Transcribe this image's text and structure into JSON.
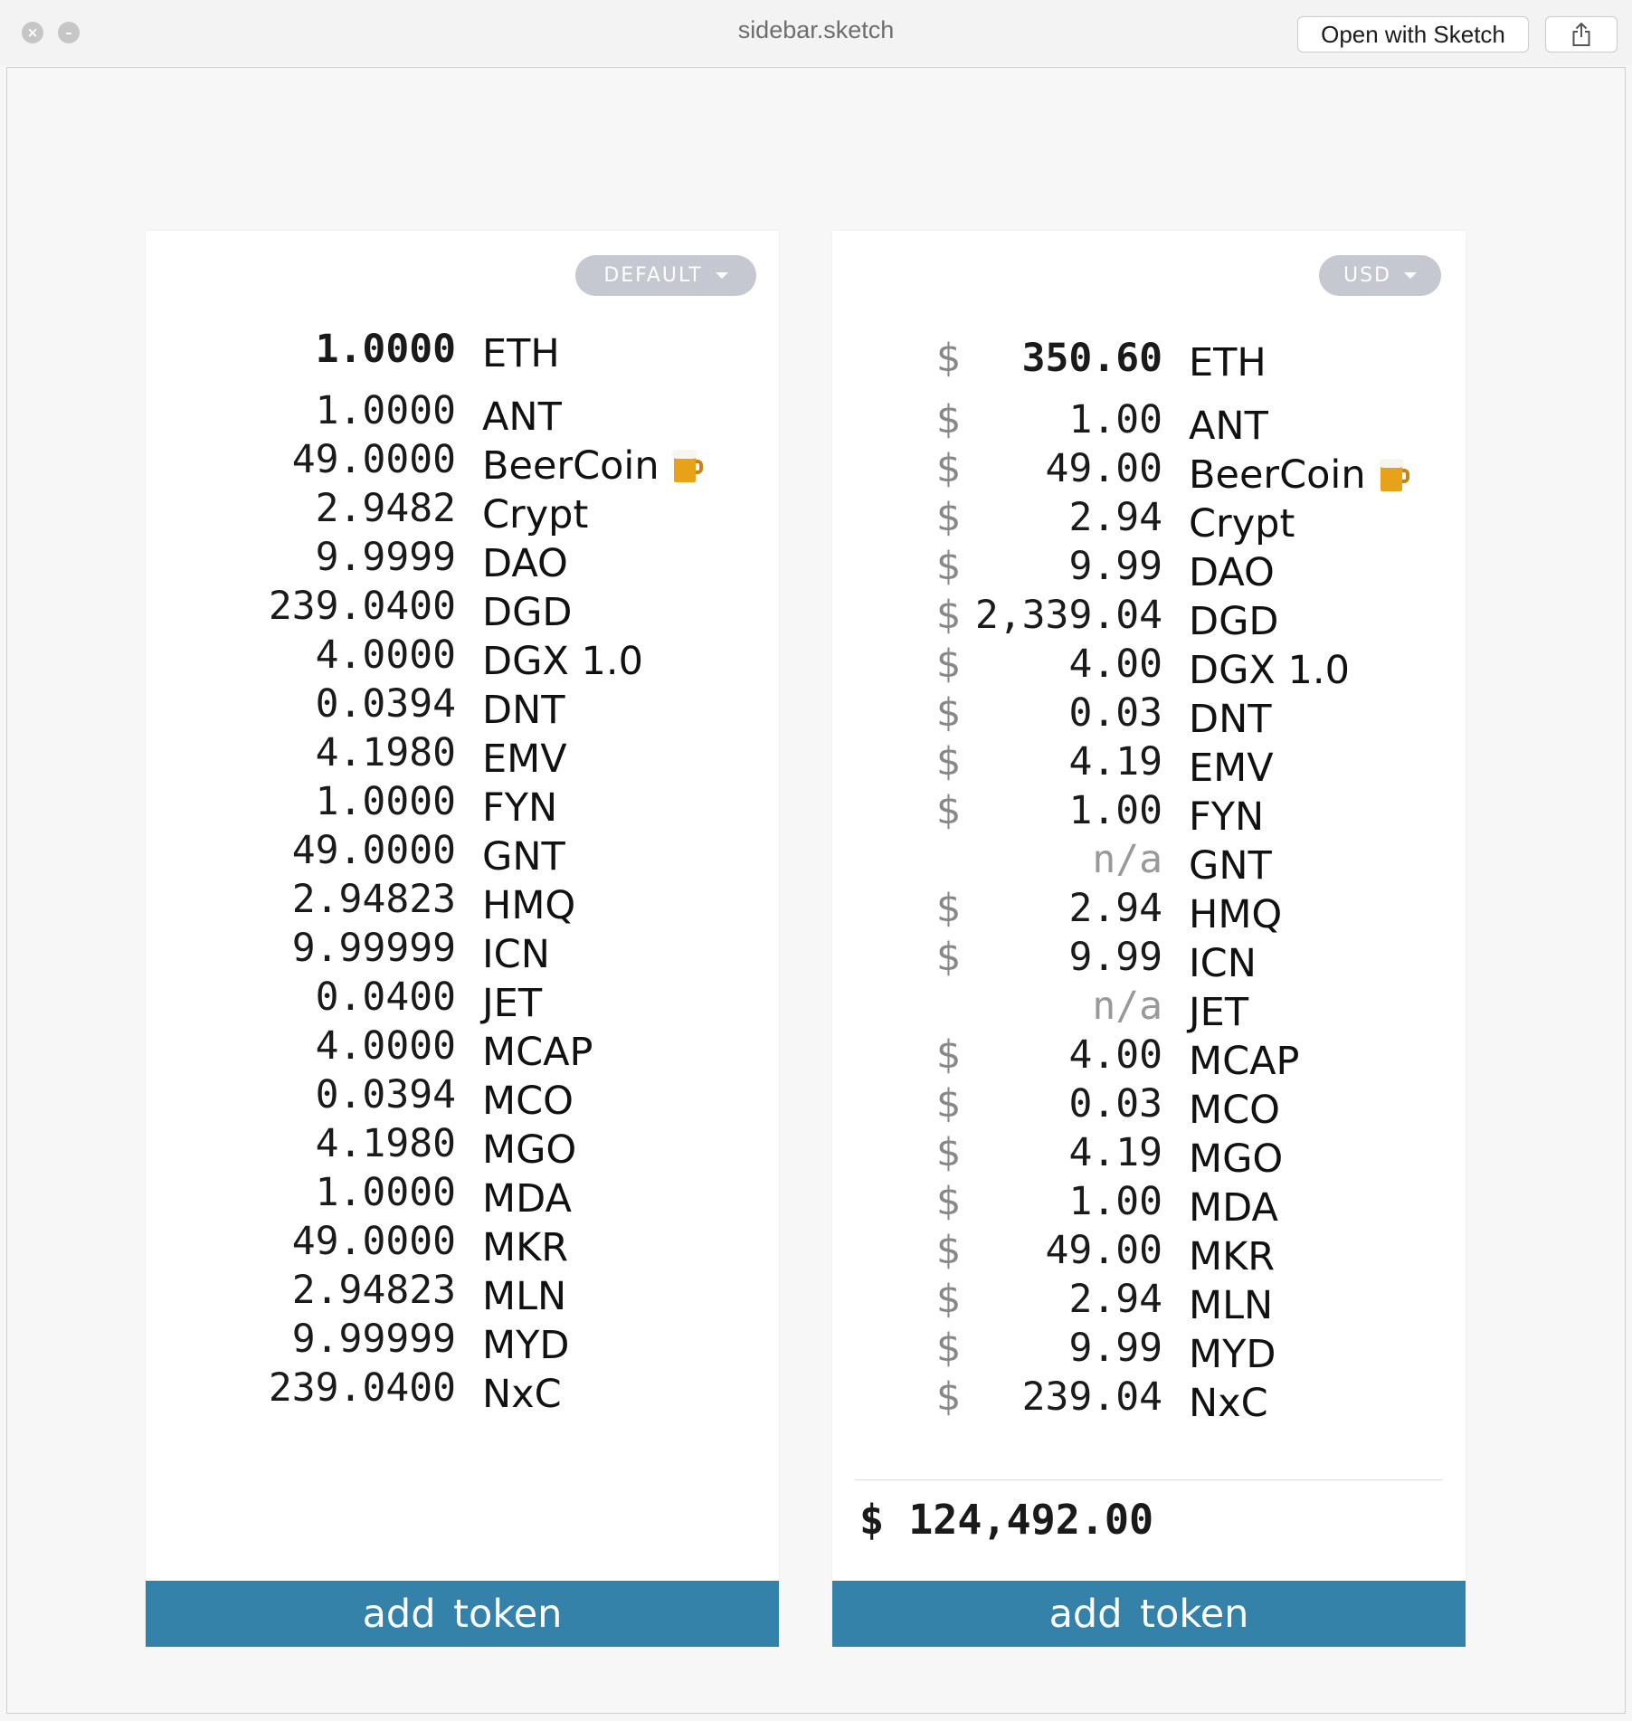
{
  "window": {
    "title": "sidebar.sketch",
    "open_with_label": "Open with Sketch",
    "share_icon": "share-icon",
    "close_icon": "close-icon",
    "minimize_icon": "minimize-icon"
  },
  "left_panel": {
    "selector": {
      "label": "DEFAULT",
      "icon": "chevron-down-icon"
    },
    "header": {
      "amount": "1.0000",
      "symbol": "ETH"
    },
    "tokens": [
      {
        "amount": "1.0000",
        "symbol": "ANT"
      },
      {
        "amount": "49.0000",
        "symbol": "BeerCoin",
        "icon": "beer-mug-icon"
      },
      {
        "amount": "2.9482",
        "symbol": "Crypt"
      },
      {
        "amount": "9.9999",
        "symbol": "DAO"
      },
      {
        "amount": "239.0400",
        "symbol": "DGD"
      },
      {
        "amount": "4.0000",
        "symbol": "DGX 1.0"
      },
      {
        "amount": "0.0394",
        "symbol": "DNT"
      },
      {
        "amount": "4.1980",
        "symbol": "EMV"
      },
      {
        "amount": "1.0000",
        "symbol": "FYN"
      },
      {
        "amount": "49.0000",
        "symbol": "GNT"
      },
      {
        "amount": "2.94823",
        "symbol": "HMQ"
      },
      {
        "amount": "9.99999",
        "symbol": "ICN"
      },
      {
        "amount": "0.0400",
        "symbol": "JET"
      },
      {
        "amount": "4.0000",
        "symbol": "MCAP"
      },
      {
        "amount": "0.0394",
        "symbol": "MCO"
      },
      {
        "amount": "4.1980",
        "symbol": "MGO"
      },
      {
        "amount": "1.0000",
        "symbol": "MDA"
      },
      {
        "amount": "49.0000",
        "symbol": "MKR"
      },
      {
        "amount": "2.94823",
        "symbol": "MLN"
      },
      {
        "amount": "9.99999",
        "symbol": "MYD"
      },
      {
        "amount": "239.0400",
        "symbol": "NxC"
      }
    ],
    "add_token_label": "add token"
  },
  "right_panel": {
    "selector": {
      "label": "USD",
      "icon": "chevron-down-icon"
    },
    "header": {
      "currency": "$",
      "amount": "350.60",
      "symbol": "ETH"
    },
    "tokens": [
      {
        "currency": "$",
        "amount": "1.00",
        "symbol": "ANT"
      },
      {
        "currency": "$",
        "amount": "49.00",
        "symbol": "BeerCoin",
        "icon": "beer-mug-icon"
      },
      {
        "currency": "$",
        "amount": "2.94",
        "symbol": "Crypt"
      },
      {
        "currency": "$",
        "amount": "9.99",
        "symbol": "DAO"
      },
      {
        "currency": "$",
        "amount": "2,339.04",
        "symbol": "DGD"
      },
      {
        "currency": "$",
        "amount": "4.00",
        "symbol": "DGX 1.0"
      },
      {
        "currency": "$",
        "amount": "0.03",
        "symbol": "DNT"
      },
      {
        "currency": "$",
        "amount": "4.19",
        "symbol": "EMV"
      },
      {
        "currency": "$",
        "amount": "1.00",
        "symbol": "FYN"
      },
      {
        "currency": "",
        "amount": "n/a",
        "symbol": "GNT"
      },
      {
        "currency": "$",
        "amount": "2.94",
        "symbol": "HMQ"
      },
      {
        "currency": "$",
        "amount": "9.99",
        "symbol": "ICN"
      },
      {
        "currency": "",
        "amount": "n/a",
        "symbol": "JET"
      },
      {
        "currency": "$",
        "amount": "4.00",
        "symbol": "MCAP"
      },
      {
        "currency": "$",
        "amount": "0.03",
        "symbol": "MCO"
      },
      {
        "currency": "$",
        "amount": "4.19",
        "symbol": "MGO"
      },
      {
        "currency": "$",
        "amount": "1.00",
        "symbol": "MDA"
      },
      {
        "currency": "$",
        "amount": "49.00",
        "symbol": "MKR"
      },
      {
        "currency": "$",
        "amount": "2.94",
        "symbol": "MLN"
      },
      {
        "currency": "$",
        "amount": "9.99",
        "symbol": "MYD"
      },
      {
        "currency": "$",
        "amount": "239.04",
        "symbol": "NxC"
      }
    ],
    "total": {
      "currency": "$",
      "amount": "124,492.00"
    },
    "add_token_label": "add token"
  },
  "colors": {
    "accent_button": "#3481a9",
    "selector_pill": "#c5c8d0",
    "muted_text": "#888888"
  }
}
